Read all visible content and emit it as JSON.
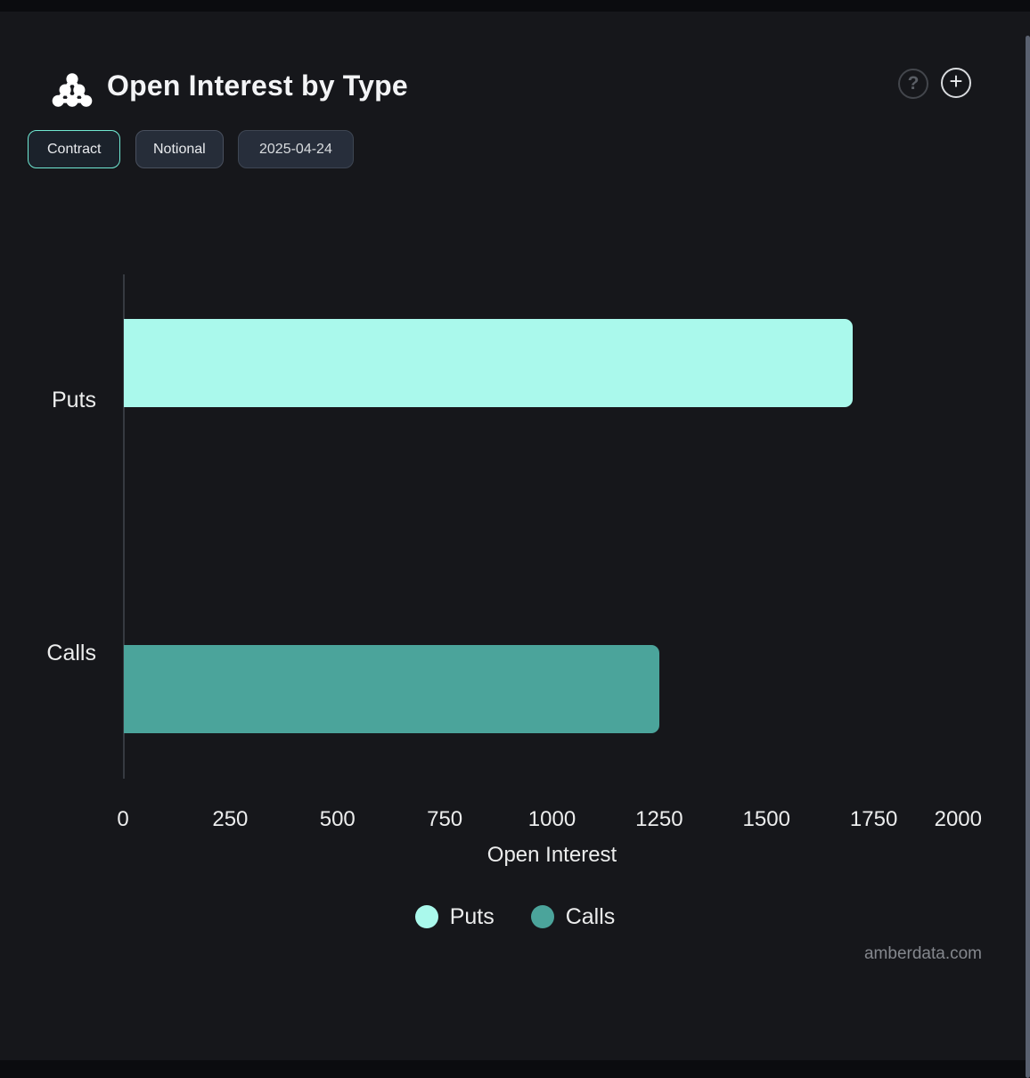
{
  "header": {
    "title": "Open Interest by Type",
    "logo_icon": "amberdata-dots-logo",
    "help_glyph": "?",
    "add_glyph": "+"
  },
  "toolbar": {
    "buttons": [
      {
        "label": "Contract",
        "active": true
      },
      {
        "label": "Notional",
        "active": false
      }
    ],
    "date_label": "2025-04-24"
  },
  "chart_data": {
    "type": "bar",
    "orientation": "horizontal",
    "categories": [
      "Puts",
      "Calls"
    ],
    "values": [
      1700,
      1250
    ],
    "bar_colors": [
      "#aaf9ec",
      "#4ba49b"
    ],
    "title": "Open Interest by Type",
    "xlabel": "Open Interest",
    "ylabel": "",
    "xlim": [
      0,
      2000
    ],
    "xticks": [
      0,
      250,
      500,
      750,
      1000,
      1250,
      1500,
      1750,
      2000
    ],
    "grid": false,
    "legend": {
      "position": "bottom",
      "entries": [
        {
          "label": "Puts",
          "color": "#aaf9ec"
        },
        {
          "label": "Calls",
          "color": "#4ba49b"
        }
      ]
    }
  },
  "footer": {
    "watermark": "amberdata.com"
  },
  "colors": {
    "background": "#16171b",
    "edge_strip": "#0b0c0f",
    "accent_active_border": "#70e9d3",
    "axis_line": "#363a41",
    "text_primary": "#eceded",
    "puts_bar": "#aaf9ec",
    "calls_bar": "#4ba49b"
  }
}
